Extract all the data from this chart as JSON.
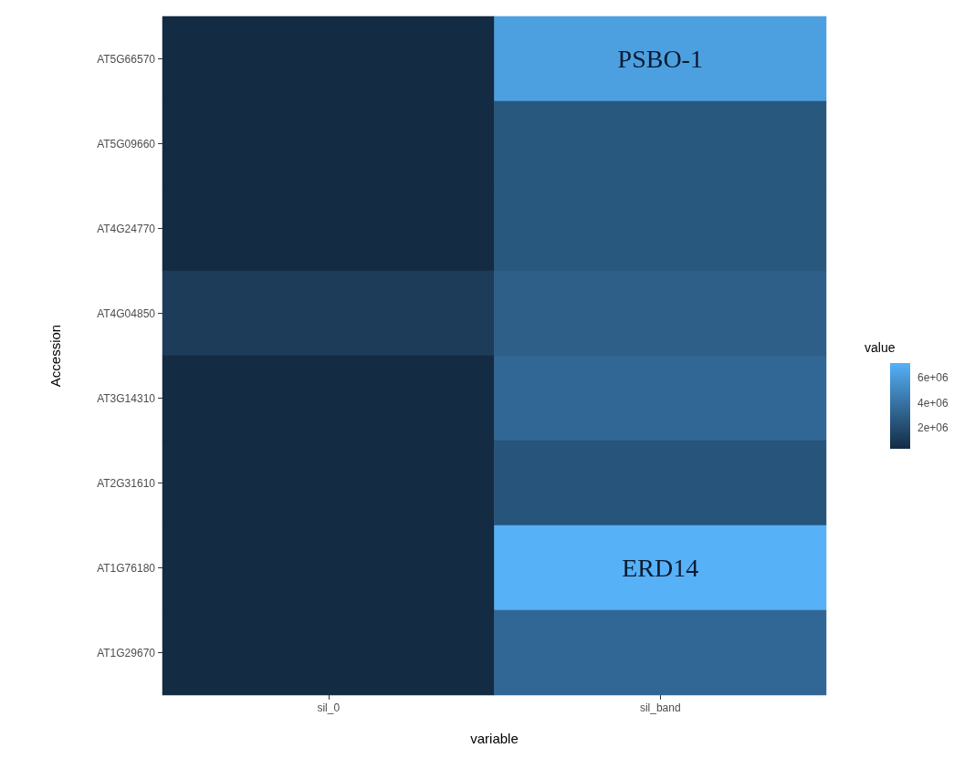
{
  "chart_data": {
    "type": "heatmap",
    "xlabel": "variable",
    "ylabel": "Accession",
    "clabel": "value",
    "categories": [
      "sil_0",
      "sil_band"
    ],
    "y_categories": [
      "AT5G66570",
      "AT5G09660",
      "AT4G24770",
      "AT4G04850",
      "AT3G14310",
      "AT2G31610",
      "AT1G76180",
      "AT1G29670"
    ],
    "cells": [
      [
        300000,
        6300000
      ],
      [
        300000,
        2600000
      ],
      [
        300000,
        2600000
      ],
      [
        1200000,
        3000000
      ],
      [
        300000,
        3400000
      ],
      [
        300000,
        2400000
      ],
      [
        300000,
        7200000
      ],
      [
        300000,
        3400000
      ]
    ],
    "clim": [
      300000,
      7200000
    ],
    "cticks": [
      {
        "value": 2000000,
        "label": "2e+06"
      },
      {
        "value": 4000000,
        "label": "4e+06"
      },
      {
        "value": 6000000,
        "label": "6e+06"
      }
    ],
    "cell_labels": [
      [
        null,
        "PSBO-1"
      ],
      [
        null,
        null
      ],
      [
        null,
        null
      ],
      [
        null,
        null
      ],
      [
        null,
        null
      ],
      [
        null,
        null
      ],
      [
        null,
        "ERD14"
      ],
      [
        null,
        null
      ]
    ]
  }
}
